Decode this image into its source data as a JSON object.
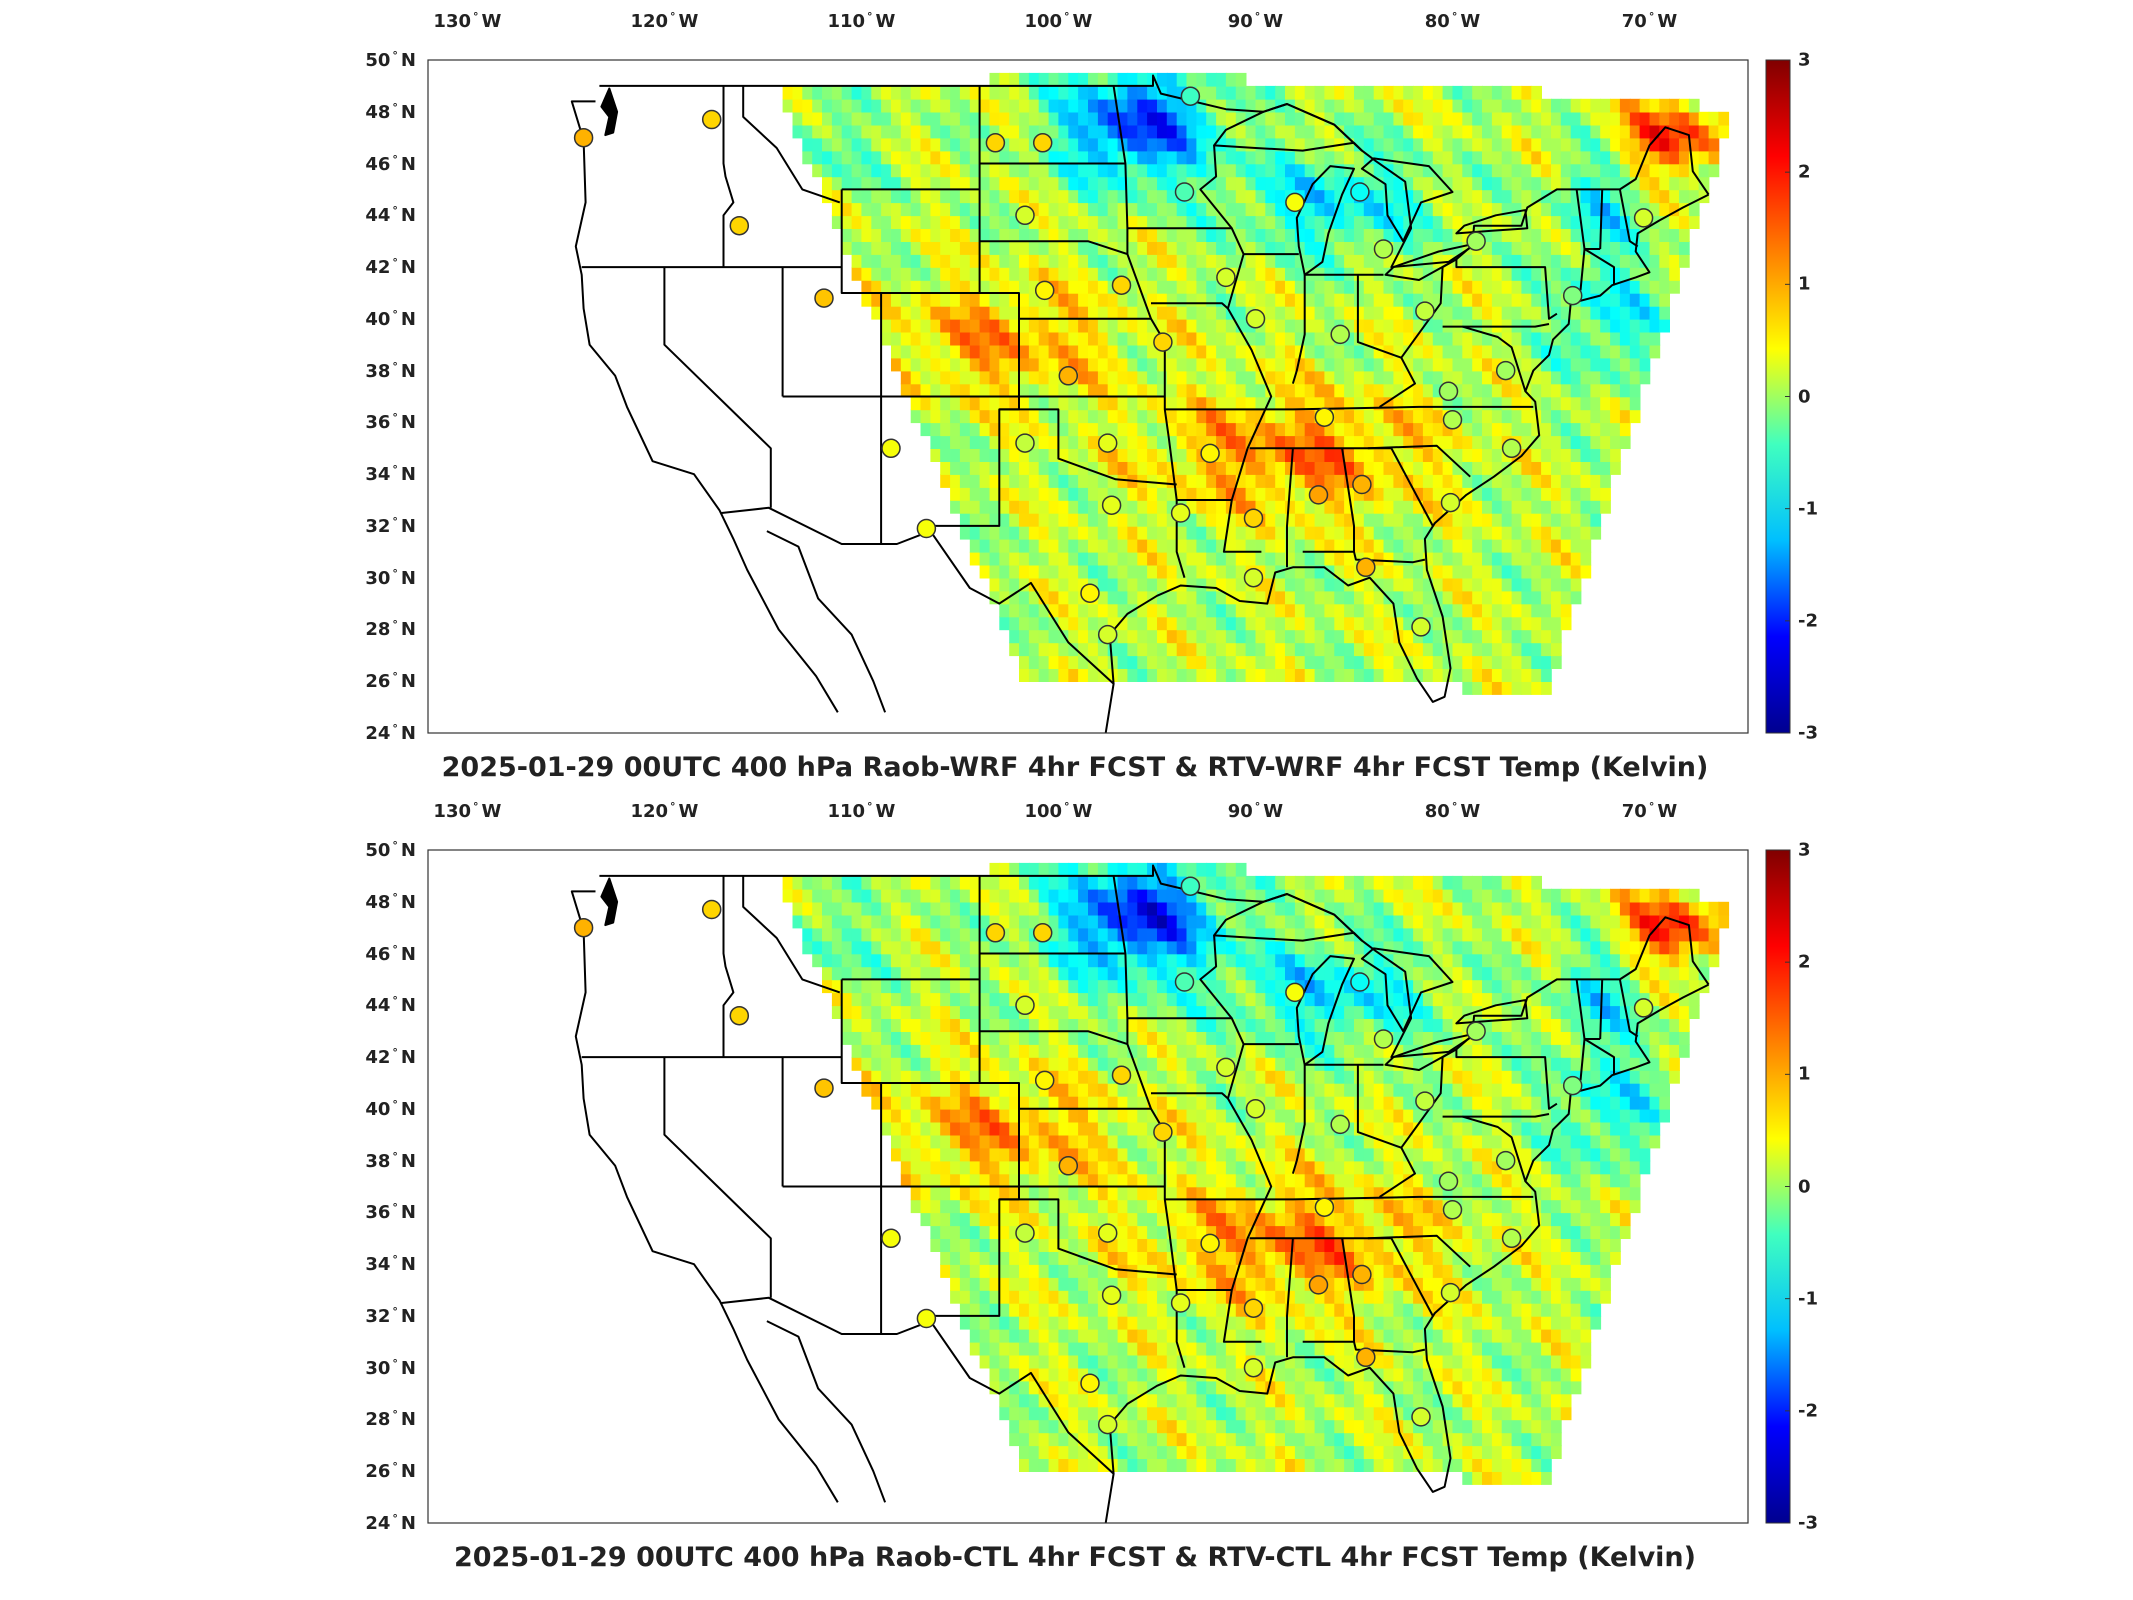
{
  "panels": [
    {
      "title": "2025-01-29 00UTC 400 hPa Raob-WRF 4hr FCST & RTV-WRF 4hr FCST Temp (Kelvin)"
    },
    {
      "title": "2025-01-29 00UTC 400 hPa Raob-CTL 4hr FCST & RTV-CTL 4hr FCST Temp (Kelvin)"
    }
  ],
  "map": {
    "lon_labels": [
      {
        "value": "130",
        "hemi": "W"
      },
      {
        "value": "120",
        "hemi": "W"
      },
      {
        "value": "110",
        "hemi": "W"
      },
      {
        "value": "100",
        "hemi": "W"
      },
      {
        "value": "90",
        "hemi": "W"
      },
      {
        "value": "80",
        "hemi": "W"
      },
      {
        "value": "70",
        "hemi": "W"
      }
    ],
    "lat_labels": [
      {
        "value": "50",
        "hemi": "N"
      },
      {
        "value": "48",
        "hemi": "N"
      },
      {
        "value": "46",
        "hemi": "N"
      },
      {
        "value": "44",
        "hemi": "N"
      },
      {
        "value": "42",
        "hemi": "N"
      },
      {
        "value": "40",
        "hemi": "N"
      },
      {
        "value": "38",
        "hemi": "N"
      },
      {
        "value": "36",
        "hemi": "N"
      },
      {
        "value": "34",
        "hemi": "N"
      },
      {
        "value": "32",
        "hemi": "N"
      },
      {
        "value": "30",
        "hemi": "N"
      },
      {
        "value": "28",
        "hemi": "N"
      },
      {
        "value": "26",
        "hemi": "N"
      },
      {
        "value": "24",
        "hemi": "N"
      }
    ],
    "lon_range": [
      -132,
      -65
    ],
    "lat_range": [
      24,
      50
    ]
  },
  "colorbar": {
    "min": -3,
    "max": 3,
    "ticks": [
      "3",
      "2",
      "1",
      "0",
      "-1",
      "-2",
      "-3"
    ],
    "colormap": "jet",
    "colors": [
      "#00008f",
      "#0000ff",
      "#00bfff",
      "#40ffbf",
      "#ffff00",
      "#ff8000",
      "#ff0000",
      "#800000"
    ]
  },
  "raob_stations": [
    {
      "lon": -124.1,
      "lat": 47.0,
      "value": 1.2
    },
    {
      "lon": -117.6,
      "lat": 47.7,
      "value": 1.0
    },
    {
      "lon": -116.2,
      "lat": 43.6,
      "value": 1.0
    },
    {
      "lon": -111.9,
      "lat": 40.8,
      "value": 1.1
    },
    {
      "lon": -108.5,
      "lat": 35.0,
      "value": 0.7
    },
    {
      "lon": -106.7,
      "lat": 31.9,
      "value": 0.7
    },
    {
      "lon": -103.2,
      "lat": 46.8,
      "value": 1.0
    },
    {
      "lon": -100.8,
      "lat": 46.8,
      "value": 1.0
    },
    {
      "lon": -101.7,
      "lat": 44.0,
      "value": 0.5
    },
    {
      "lon": -100.7,
      "lat": 41.1,
      "value": 0.8
    },
    {
      "lon": -101.7,
      "lat": 35.2,
      "value": 0.4
    },
    {
      "lon": -97.5,
      "lat": 35.2,
      "value": 0.6
    },
    {
      "lon": -97.3,
      "lat": 32.8,
      "value": 0.6
    },
    {
      "lon": -98.4,
      "lat": 29.4,
      "value": 0.8
    },
    {
      "lon": -97.5,
      "lat": 27.8,
      "value": 0.5
    },
    {
      "lon": -99.5,
      "lat": 37.8,
      "value": 1.2
    },
    {
      "lon": -96.8,
      "lat": 41.3,
      "value": 1.0
    },
    {
      "lon": -94.7,
      "lat": 39.1,
      "value": 1.0
    },
    {
      "lon": -93.6,
      "lat": 44.9,
      "value": -0.3
    },
    {
      "lon": -93.3,
      "lat": 48.6,
      "value": -0.4
    },
    {
      "lon": -91.5,
      "lat": 41.6,
      "value": 0.5
    },
    {
      "lon": -90.0,
      "lat": 40.0,
      "value": 0.5
    },
    {
      "lon": -92.3,
      "lat": 34.8,
      "value": 0.8
    },
    {
      "lon": -93.8,
      "lat": 32.5,
      "value": 0.6
    },
    {
      "lon": -90.1,
      "lat": 32.3,
      "value": 1.0
    },
    {
      "lon": -90.1,
      "lat": 30.0,
      "value": 0.5
    },
    {
      "lon": -86.5,
      "lat": 36.2,
      "value": 0.8
    },
    {
      "lon": -86.8,
      "lat": 33.2,
      "value": 1.3
    },
    {
      "lon": -84.6,
      "lat": 33.6,
      "value": 1.2
    },
    {
      "lon": -84.4,
      "lat": 30.4,
      "value": 1.2
    },
    {
      "lon": -81.6,
      "lat": 28.1,
      "value": 0.5
    },
    {
      "lon": -88.0,
      "lat": 44.5,
      "value": 0.7
    },
    {
      "lon": -84.7,
      "lat": 44.9,
      "value": -0.7
    },
    {
      "lon": -83.5,
      "lat": 42.7,
      "value": 0.3
    },
    {
      "lon": -85.7,
      "lat": 39.4,
      "value": 0.3
    },
    {
      "lon": -81.4,
      "lat": 40.3,
      "value": 0.4
    },
    {
      "lon": -80.2,
      "lat": 37.2,
      "value": 0.2
    },
    {
      "lon": -80.0,
      "lat": 36.1,
      "value": 0.3
    },
    {
      "lon": -80.1,
      "lat": 32.9,
      "value": 0.5
    },
    {
      "lon": -77.0,
      "lat": 35.0,
      "value": 0.3
    },
    {
      "lon": -77.3,
      "lat": 38.0,
      "value": 0.2
    },
    {
      "lon": -78.8,
      "lat": 43.0,
      "value": 0.2
    },
    {
      "lon": -73.9,
      "lat": 40.9,
      "value": 0.0
    },
    {
      "lon": -70.3,
      "lat": 43.9,
      "value": 0.5
    }
  ]
}
